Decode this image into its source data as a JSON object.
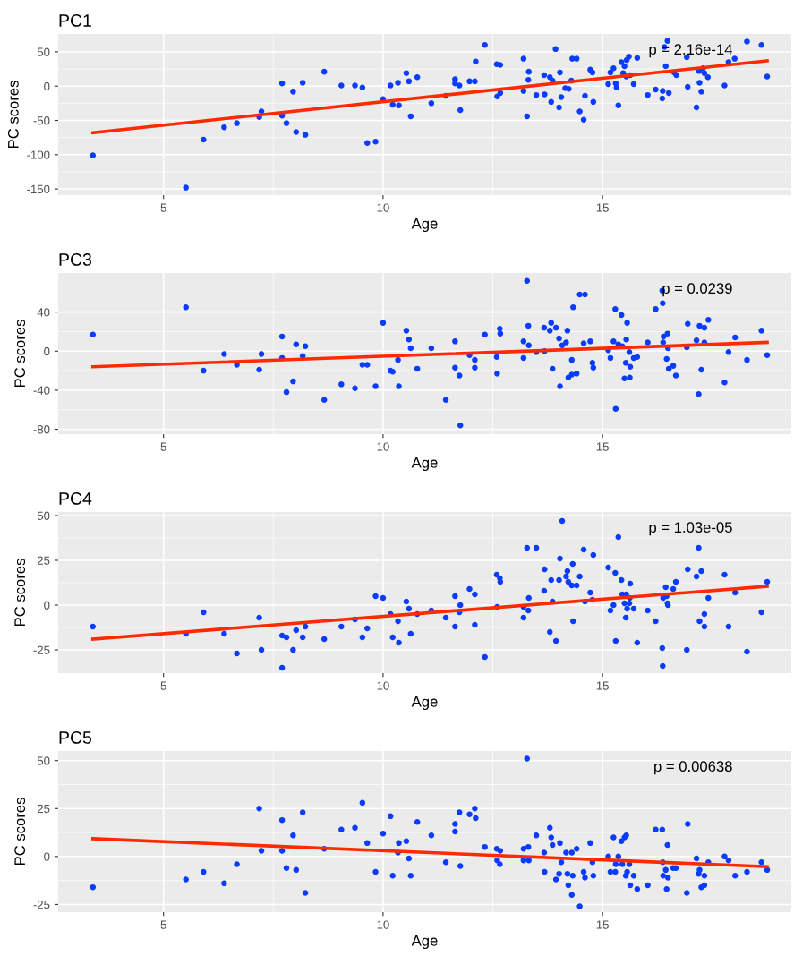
{
  "chart_data": [
    {
      "type": "scatter",
      "title": "PC1",
      "xlabel": "Age",
      "ylabel": "PC scores",
      "xlim": [
        2.6,
        19.3
      ],
      "xticks": [
        5,
        10,
        15
      ],
      "ylim": [
        -159,
        76
      ],
      "yticks": [
        {
          "value": -150,
          "label": "-150"
        },
        {
          "value": -100,
          "label": "-100"
        },
        {
          "value": -50,
          "label": "-50"
        },
        0,
        50
      ],
      "grid": true,
      "annotations": [
        "p = 2.16e-14"
      ],
      "series": [
        {
          "marker": "circle",
          "color": "#0a3cff",
          "x": [
            3.39,
            5.51,
            5.91,
            6.38,
            6.67,
            7.18,
            7.23,
            7.7,
            7.7,
            7.8,
            7.95,
            8.02,
            8.17,
            8.23,
            8.66,
            9.05,
            9.36,
            9.53,
            9.64,
            9.83,
            10.0,
            10.17,
            10.22,
            10.34,
            10.36,
            10.53,
            10.59,
            10.63,
            10.78,
            11.1,
            11.43,
            11.64,
            11.64,
            11.74,
            11.76,
            11.97,
            12.09,
            12.11,
            12.32,
            12.59,
            12.6,
            12.67,
            12.67,
            13.2,
            13.2,
            13.28,
            13.31,
            13.32,
            13.49,
            13.67,
            13.68,
            13.8,
            13.83,
            13.86,
            13.93,
            14.01,
            14.03,
            14.06,
            14.15,
            14.23,
            14.29,
            14.31,
            14.41,
            14.48,
            14.57,
            14.6,
            14.72,
            14.77,
            14.79,
            15.13,
            15.18,
            15.25,
            15.3,
            15.32,
            15.36,
            15.43,
            15.47,
            15.5,
            15.54,
            15.55,
            15.6,
            15.63,
            15.71,
            15.79,
            16.03,
            16.21,
            16.36,
            16.37,
            16.41,
            16.44,
            16.48,
            16.51,
            16.63,
            16.68,
            16.92,
            16.94,
            17.14,
            17.2,
            17.21,
            17.25,
            17.29,
            17.32,
            17.4,
            17.78,
            17.87,
            18.01,
            18.29,
            18.62,
            18.75
          ],
          "values": [
            -101,
            -148,
            -78,
            -60,
            -54,
            -45,
            -37,
            4,
            -43,
            -54,
            -8,
            -67,
            5,
            -71,
            21,
            1,
            1,
            -2,
            -83,
            -81,
            -19,
            1,
            -27,
            5,
            -28,
            19,
            7,
            -44,
            13,
            -25,
            -14,
            10,
            4,
            1,
            -35,
            7,
            7,
            36,
            60,
            32,
            -15,
            31,
            -10,
            40,
            -7,
            -44,
            9,
            21,
            -13,
            16,
            -12,
            13,
            -23,
            8,
            54,
            -31,
            20,
            -16,
            -3,
            -4,
            8,
            40,
            40,
            -37,
            -49,
            -14,
            24,
            20,
            -23,
            3,
            20,
            26,
            4,
            -2,
            -28,
            35,
            19,
            29,
            14,
            38,
            43,
            16,
            3,
            41,
            -13,
            -5,
            -18,
            -7,
            57,
            29,
            66,
            -10,
            20,
            16,
            42,
            -1,
            -31,
            22,
            5,
            -8,
            26,
            19,
            13,
            1,
            35,
            40,
            65,
            60,
            14
          ]
        },
        {
          "type": "line",
          "color": "#ff2a00",
          "x": [
            3.39,
            18.75
          ],
          "values": [
            -68,
            37
          ]
        }
      ]
    },
    {
      "type": "scatter",
      "title": "PC3",
      "xlabel": "Age",
      "ylabel": "PC scores",
      "xlim": [
        2.6,
        19.3
      ],
      "xticks": [
        5,
        10,
        15
      ],
      "ylim": [
        -85,
        80
      ],
      "yticks": [
        {
          "value": -80,
          "label": "-80"
        },
        {
          "value": -40,
          "label": "-40"
        },
        0,
        40
      ],
      "grid": true,
      "annotations": [
        "p = 0.0239"
      ],
      "series": [
        {
          "marker": "circle",
          "color": "#0a3cff",
          "x": [
            3.39,
            5.51,
            5.91,
            6.38,
            6.67,
            7.18,
            7.23,
            7.7,
            7.7,
            7.8,
            7.95,
            8.02,
            8.17,
            8.23,
            8.66,
            9.05,
            9.36,
            9.53,
            9.64,
            9.83,
            10.0,
            10.17,
            10.22,
            10.34,
            10.36,
            10.53,
            10.59,
            10.63,
            10.78,
            11.1,
            11.43,
            11.64,
            11.64,
            11.74,
            11.76,
            11.97,
            12.09,
            12.09,
            12.32,
            12.59,
            12.6,
            12.66,
            12.67,
            13.2,
            13.2,
            13.28,
            13.31,
            13.32,
            13.49,
            13.67,
            13.68,
            13.8,
            13.83,
            13.86,
            13.94,
            14.01,
            14.03,
            14.08,
            14.17,
            14.2,
            14.22,
            14.3,
            14.3,
            14.33,
            14.41,
            14.48,
            14.57,
            14.6,
            14.72,
            14.77,
            14.79,
            15.13,
            15.18,
            15.25,
            15.29,
            15.3,
            15.36,
            15.43,
            15.45,
            15.5,
            15.53,
            15.54,
            15.56,
            15.61,
            15.62,
            15.63,
            15.71,
            15.79,
            16.03,
            16.21,
            16.36,
            16.37,
            16.38,
            16.39,
            16.46,
            16.48,
            16.49,
            16.51,
            16.61,
            16.67,
            16.92,
            16.94,
            17.14,
            17.19,
            17.21,
            17.25,
            17.32,
            17.32,
            17.41,
            17.78,
            17.87,
            18.02,
            18.29,
            18.62,
            18.75
          ],
          "values": [
            17,
            45,
            -20,
            -3,
            -14,
            -19,
            -3,
            15,
            -7,
            -42,
            -31,
            7,
            -5,
            5,
            -50,
            -34,
            -38,
            -14,
            -14,
            -36,
            29,
            -20,
            -21,
            -9,
            -36,
            21,
            12,
            3,
            -18,
            3,
            -50,
            10,
            -17,
            -25,
            -76,
            -4,
            -9,
            -17,
            17,
            -6,
            -23,
            23,
            18,
            10,
            -7,
            72,
            26,
            6,
            -1,
            24,
            0,
            21,
            29,
            -18,
            24,
            13,
            -36,
            6,
            9,
            21,
            -27,
            -9,
            -24,
            45,
            -23,
            58,
            8,
            58,
            10,
            -12,
            -17,
            1,
            -7,
            10,
            43,
            -59,
            7,
            37,
            5,
            -28,
            -12,
            12,
            29,
            -1,
            -27,
            -16,
            -7,
            -6,
            9,
            43,
            62,
            49,
            9,
            15,
            -8,
            18,
            3,
            -18,
            -15,
            -25,
            4,
            28,
            11,
            -44,
            26,
            -19,
            24,
            9,
            32,
            -32,
            -1,
            14,
            -9,
            21,
            -4
          ]
        },
        {
          "type": "line",
          "color": "#ff2a00",
          "x": [
            3.39,
            18.75
          ],
          "values": [
            -16,
            9
          ]
        }
      ]
    },
    {
      "type": "scatter",
      "title": "PC4",
      "xlabel": "Age",
      "ylabel": "PC scores",
      "xlim": [
        2.6,
        19.3
      ],
      "xticks": [
        5,
        10,
        15
      ],
      "ylim": [
        -38,
        52
      ],
      "yticks": [
        {
          "value": -25,
          "label": "-25"
        },
        0,
        25,
        50
      ],
      "grid": true,
      "annotations": [
        "p = 1.03e-05"
      ],
      "series": [
        {
          "marker": "circle",
          "color": "#0a3cff",
          "x": [
            3.39,
            5.51,
            5.91,
            6.38,
            6.67,
            7.18,
            7.23,
            7.7,
            7.7,
            7.8,
            7.95,
            8.02,
            8.17,
            8.23,
            8.66,
            9.05,
            9.36,
            9.53,
            9.64,
            9.83,
            10.0,
            10.17,
            10.22,
            10.34,
            10.36,
            10.53,
            10.59,
            10.63,
            10.78,
            11.1,
            11.43,
            11.64,
            11.64,
            11.74,
            11.76,
            11.97,
            12.09,
            12.09,
            12.32,
            12.59,
            12.6,
            12.66,
            12.67,
            13.2,
            13.2,
            13.28,
            13.31,
            13.32,
            13.49,
            13.67,
            13.68,
            13.8,
            13.83,
            13.86,
            13.94,
            14.01,
            14.03,
            14.08,
            14.17,
            14.2,
            14.22,
            14.3,
            14.32,
            14.33,
            14.41,
            14.48,
            14.57,
            14.6,
            14.72,
            14.77,
            14.79,
            15.13,
            15.18,
            15.25,
            15.29,
            15.3,
            15.36,
            15.43,
            15.45,
            15.5,
            15.53,
            15.54,
            15.56,
            15.61,
            15.62,
            15.63,
            15.71,
            15.79,
            16.03,
            16.21,
            16.36,
            16.37,
            16.38,
            16.44,
            16.46,
            16.48,
            16.49,
            16.61,
            16.67,
            16.92,
            16.94,
            17.14,
            17.19,
            17.21,
            17.25,
            17.32,
            17.32,
            17.41,
            17.78,
            17.87,
            18.02,
            18.29,
            18.62,
            18.75
          ],
          "values": [
            -12,
            -16,
            -4,
            -16,
            -27,
            -7,
            -25,
            -17,
            -35,
            -18,
            -25,
            -14,
            -18,
            -12,
            -19,
            -12,
            -8,
            -18,
            -13,
            5,
            4,
            -5,
            -18,
            -9,
            -21,
            2,
            -2,
            -16,
            -5,
            -3,
            -7,
            5,
            -12,
            -4,
            0,
            9,
            6,
            -11,
            -29,
            17,
            -1,
            15,
            13,
            -1,
            -7,
            32,
            -3,
            4,
            32,
            8,
            20,
            -15,
            14,
            2,
            -20,
            14,
            26,
            47,
            16,
            19,
            13,
            11,
            23,
            -9,
            11,
            16,
            31,
            2,
            7,
            3,
            28,
            21,
            -3,
            0,
            18,
            -20,
            38,
            14,
            6,
            1,
            -7,
            6,
            -2,
            1,
            4,
            12,
            -2,
            -21,
            -3,
            -9,
            -24,
            -34,
            4,
            10,
            5,
            1,
            0,
            9,
            13,
            -25,
            20,
            16,
            32,
            -9,
            19,
            -5,
            -12,
            4,
            17,
            -12,
            7,
            -26,
            -4,
            13
          ]
        },
        {
          "type": "line",
          "color": "#ff2a00",
          "x": [
            3.39,
            18.75
          ],
          "values": [
            -19,
            10.5
          ]
        }
      ]
    },
    {
      "type": "scatter",
      "title": "PC5",
      "xlabel": "Age",
      "ylabel": "PC scores",
      "xlim": [
        2.6,
        19.3
      ],
      "xticks": [
        5,
        10,
        15
      ],
      "ylim": [
        -29,
        55
      ],
      "yticks": [
        {
          "value": -25,
          "label": "-25"
        },
        0,
        25,
        50
      ],
      "grid": true,
      "annotations": [
        "p = 0.00638"
      ],
      "series": [
        {
          "marker": "circle",
          "color": "#0a3cff",
          "x": [
            3.39,
            5.51,
            5.91,
            6.38,
            6.67,
            7.18,
            7.23,
            7.7,
            7.7,
            7.8,
            7.95,
            8.02,
            8.17,
            8.23,
            8.66,
            9.05,
            9.36,
            9.53,
            9.64,
            9.83,
            10.0,
            10.17,
            10.22,
            10.34,
            10.36,
            10.53,
            10.59,
            10.63,
            10.78,
            11.1,
            11.43,
            11.64,
            11.64,
            11.74,
            11.76,
            11.97,
            12.09,
            12.11,
            12.32,
            12.59,
            12.6,
            12.66,
            12.67,
            13.2,
            13.2,
            13.28,
            13.31,
            13.32,
            13.49,
            13.67,
            13.68,
            13.8,
            13.83,
            13.86,
            13.94,
            14.01,
            14.03,
            14.06,
            14.17,
            14.2,
            14.22,
            14.3,
            14.32,
            14.3,
            14.41,
            14.48,
            14.57,
            14.6,
            14.72,
            14.77,
            14.79,
            15.13,
            15.18,
            15.25,
            15.29,
            15.3,
            15.36,
            15.43,
            15.45,
            15.5,
            15.53,
            15.54,
            15.56,
            15.61,
            15.63,
            15.71,
            15.79,
            16.03,
            16.21,
            16.36,
            16.37,
            16.38,
            16.44,
            16.46,
            16.48,
            16.49,
            16.61,
            16.67,
            16.92,
            16.94,
            17.14,
            17.19,
            17.21,
            17.25,
            17.32,
            17.32,
            17.41,
            17.78,
            17.87,
            18.02,
            18.29,
            18.62,
            18.75
          ],
          "values": [
            -16,
            -12,
            -8,
            -14,
            -4,
            25,
            3,
            19,
            3,
            -6,
            11,
            -7,
            23,
            -19,
            4,
            14,
            15,
            28,
            7,
            -8,
            12,
            21,
            -10,
            2,
            7,
            8,
            -1,
            -10,
            18,
            11,
            -3,
            17,
            13,
            23,
            -5,
            22,
            25,
            20,
            5,
            4,
            -2,
            -4,
            3,
            4,
            -2,
            51,
            5,
            -2,
            11,
            2,
            -8,
            15,
            10,
            6,
            -12,
            -9,
            7,
            -3,
            2,
            -9,
            -15,
            2,
            -10,
            -20,
            4,
            -26,
            -8,
            -11,
            7,
            -3,
            -10,
            0,
            -8,
            10,
            -8,
            -4,
            0,
            8,
            -4,
            10,
            -10,
            11,
            -8,
            -4,
            -15,
            -10,
            -17,
            -15,
            14,
            14,
            -3,
            -10,
            -7,
            -17,
            6,
            -11,
            -6,
            -6,
            -19,
            17,
            -1,
            -9,
            -7,
            -16,
            -15,
            -10,
            -3,
            0,
            -2,
            -10,
            -8,
            -3,
            -7
          ]
        },
        {
          "type": "line",
          "color": "#ff2a00",
          "x": [
            3.39,
            18.75
          ],
          "values": [
            9.3,
            -5.3
          ]
        }
      ]
    }
  ]
}
